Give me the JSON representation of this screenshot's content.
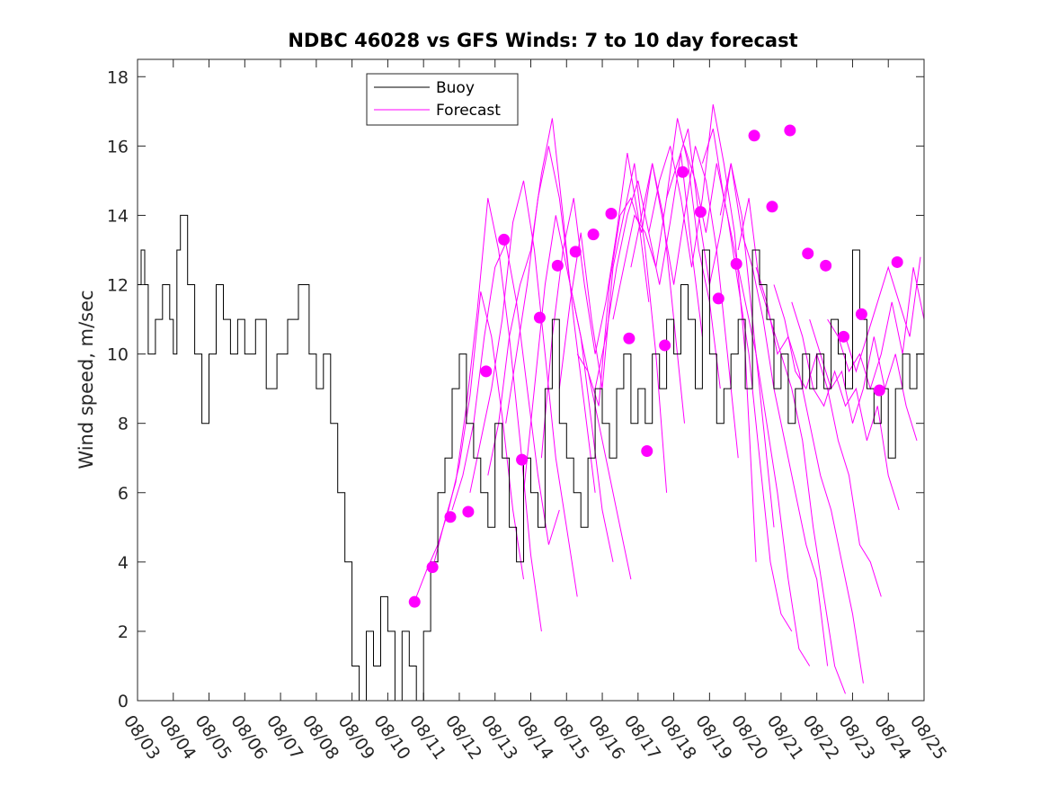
{
  "chart_data": {
    "type": "line",
    "title": "NDBC 46028 vs GFS Winds: 7 to 10 day forecast",
    "xlabel": "",
    "ylabel": "Wind speed, m/sec",
    "xlim": [
      0,
      22
    ],
    "ylim": [
      0,
      18.5
    ],
    "x_tick_labels": [
      "08/03",
      "08/04",
      "08/05",
      "08/06",
      "08/07",
      "08/08",
      "08/09",
      "08/10",
      "08/11",
      "08/12",
      "08/13",
      "08/14",
      "08/15",
      "08/16",
      "08/17",
      "08/18",
      "08/19",
      "08/20",
      "08/21",
      "08/22",
      "08/23",
      "08/24",
      "08/25"
    ],
    "y_ticks": [
      0,
      2,
      4,
      6,
      8,
      10,
      12,
      14,
      16,
      18
    ],
    "legend": {
      "placement": "top-left",
      "entries": [
        {
          "name": "Buoy",
          "color": "#000000"
        },
        {
          "name": "Forecast",
          "color": "#ff00ff"
        }
      ]
    },
    "colors": {
      "buoy": "#000000",
      "forecast": "#ff00ff"
    },
    "series": [
      {
        "name": "Buoy",
        "x": [
          0.0,
          0.1,
          0.2,
          0.3,
          0.5,
          0.7,
          0.9,
          1.0,
          1.1,
          1.2,
          1.4,
          1.6,
          1.8,
          2.0,
          2.2,
          2.4,
          2.6,
          2.8,
          3.0,
          3.3,
          3.6,
          3.9,
          4.2,
          4.5,
          4.8,
          5.0,
          5.2,
          5.4,
          5.6,
          5.8,
          6.0,
          6.2,
          6.4,
          6.6,
          6.8,
          7.0,
          7.2,
          7.4,
          7.6,
          7.8,
          8.0,
          8.2,
          8.4,
          8.6,
          8.8,
          9.0,
          9.2,
          9.4,
          9.6,
          9.8,
          10.0,
          10.2,
          10.4,
          10.6,
          10.8,
          11.0,
          11.2,
          11.4,
          11.6,
          11.8,
          12.0,
          12.2,
          12.4,
          12.6,
          12.8,
          13.0,
          13.2,
          13.4,
          13.6,
          13.8,
          14.0,
          14.2,
          14.4,
          14.6,
          14.8,
          15.0,
          15.2,
          15.4,
          15.6,
          15.8,
          16.0,
          16.2,
          16.4,
          16.6,
          16.8,
          17.0,
          17.2,
          17.4,
          17.6,
          17.8,
          18.0,
          18.2,
          18.4,
          18.6,
          18.8,
          19.0,
          19.2,
          19.4,
          19.6,
          19.8,
          20.0,
          20.2,
          20.4,
          20.6,
          20.8,
          21.0,
          21.2,
          21.4,
          21.6,
          21.8,
          22.0
        ],
        "y": [
          12,
          13,
          12,
          10,
          11,
          12,
          11,
          10,
          13,
          14,
          12,
          10,
          8,
          10,
          12,
          11,
          10,
          11,
          10,
          11,
          9,
          10,
          11,
          12,
          10,
          9,
          10,
          8,
          6,
          4,
          1,
          0,
          2,
          1,
          3,
          2,
          0,
          2,
          1,
          0,
          2,
          4,
          6,
          7,
          9,
          10,
          8,
          7,
          6,
          5,
          8,
          7,
          5,
          4,
          7,
          6,
          5,
          9,
          11,
          8,
          7,
          6,
          5,
          7,
          9,
          8,
          7,
          9,
          10,
          8,
          9,
          8,
          10,
          9,
          11,
          10,
          12,
          11,
          9,
          13,
          10,
          8,
          9,
          10,
          11,
          9,
          13,
          12,
          11,
          9,
          10,
          8,
          9,
          10,
          9,
          10,
          9,
          11,
          10,
          9,
          13,
          11,
          9,
          8,
          9,
          7,
          9,
          10,
          9,
          10,
          9
        ],
        "note": "values approximated from plot; x measured in days since 08/03"
      }
    ],
    "forecast_lines": [
      {
        "x": [
          7.8,
          8.1,
          8.4,
          8.7,
          9.0,
          9.3,
          9.6,
          9.9,
          10.2,
          10.5,
          10.8
        ],
        "y": [
          3.0,
          3.8,
          4.5,
          5.5,
          6.8,
          8.8,
          11.8,
          10.5,
          8.2,
          5.5,
          3.5
        ]
      },
      {
        "x": [
          8.3,
          8.6,
          8.9,
          9.2,
          9.5,
          9.8,
          10.1,
          10.4,
          10.7,
          11.0,
          11.3
        ],
        "y": [
          4.0,
          5.2,
          6.3,
          8.5,
          11.2,
          14.5,
          13.0,
          10.5,
          7.5,
          4.2,
          2.0
        ]
      },
      {
        "x": [
          8.8,
          9.1,
          9.4,
          9.7,
          10.0,
          10.3,
          10.6,
          10.9,
          11.2,
          11.5,
          11.8
        ],
        "y": [
          5.5,
          6.5,
          8.0,
          10.5,
          12.5,
          13.2,
          11.5,
          9.0,
          6.5,
          4.5,
          5.5
        ]
      },
      {
        "x": [
          9.3,
          9.6,
          9.9,
          10.2,
          10.5,
          10.8,
          11.1,
          11.4,
          11.7,
          12.0,
          12.3
        ],
        "y": [
          6.0,
          7.5,
          9.0,
          11.0,
          13.8,
          15.0,
          13.0,
          10.0,
          7.0,
          5.0,
          3.0
        ]
      },
      {
        "x": [
          9.8,
          10.1,
          10.4,
          10.7,
          11.0,
          11.3,
          11.6,
          11.9,
          12.2,
          12.5,
          12.8
        ],
        "y": [
          6.5,
          8.0,
          10.5,
          12.0,
          13.0,
          15.2,
          16.8,
          14.0,
          11.0,
          8.5,
          6.0
        ]
      },
      {
        "x": [
          10.3,
          10.6,
          10.9,
          11.2,
          11.5,
          11.8,
          12.1,
          12.4,
          12.7,
          13.0,
          13.3
        ],
        "y": [
          8.0,
          10.0,
          12.0,
          14.5,
          16.0,
          14.5,
          12.0,
          10.5,
          8.0,
          5.5,
          4.0
        ]
      },
      {
        "x": [
          10.8,
          11.1,
          11.4,
          11.7,
          12.0,
          12.3,
          12.6,
          12.9,
          13.2,
          13.5,
          13.8
        ],
        "y": [
          6.0,
          9.0,
          12.0,
          14.0,
          12.5,
          11.0,
          9.5,
          8.0,
          6.5,
          5.0,
          3.5
        ]
      },
      {
        "x": [
          11.3,
          11.6,
          11.9,
          12.2,
          12.5,
          12.8,
          13.1,
          13.4,
          13.7,
          14.0,
          14.3
        ],
        "y": [
          7.0,
          10.5,
          13.0,
          14.5,
          12.0,
          10.0,
          11.5,
          13.5,
          15.8,
          14.0,
          11.5
        ]
      },
      {
        "x": [
          11.8,
          12.1,
          12.4,
          12.7,
          13.0,
          13.3,
          13.6,
          13.9,
          14.2,
          14.5,
          14.8
        ],
        "y": [
          9.0,
          11.5,
          13.5,
          11.0,
          9.0,
          12.5,
          14.0,
          15.5,
          13.0,
          10.0,
          6.0
        ]
      },
      {
        "x": [
          12.3,
          12.6,
          12.9,
          13.2,
          13.5,
          13.8,
          14.1,
          14.4,
          14.7,
          15.0,
          15.3
        ],
        "y": [
          10.0,
          9.5,
          8.5,
          12.0,
          14.0,
          14.5,
          13.5,
          15.5,
          14.0,
          11.0,
          8.0
        ]
      },
      {
        "x": [
          12.8,
          13.1,
          13.4,
          13.7,
          14.0,
          14.3,
          14.6,
          14.9,
          15.2,
          15.5,
          15.8
        ],
        "y": [
          9.0,
          10.5,
          12.5,
          14.0,
          15.0,
          13.5,
          12.0,
          13.8,
          15.8,
          13.0,
          10.5
        ]
      },
      {
        "x": [
          13.3,
          13.6,
          13.9,
          14.2,
          14.5,
          14.8,
          15.1,
          15.4,
          15.7,
          16.0,
          16.3
        ],
        "y": [
          11.0,
          12.5,
          14.0,
          13.5,
          12.5,
          14.5,
          16.8,
          15.5,
          13.0,
          11.5,
          9.0
        ]
      },
      {
        "x": [
          13.8,
          14.1,
          14.4,
          14.7,
          15.0,
          15.3,
          15.6,
          15.9,
          16.2,
          16.5,
          16.8
        ],
        "y": [
          12.5,
          14.0,
          15.5,
          13.8,
          12.0,
          14.0,
          16.0,
          15.0,
          13.0,
          10.0,
          7.0
        ]
      },
      {
        "x": [
          14.3,
          14.6,
          14.9,
          15.2,
          15.5,
          15.8,
          16.1,
          16.4,
          16.7,
          17.0,
          17.3
        ],
        "y": [
          13.5,
          15.0,
          16.0,
          14.5,
          12.5,
          14.5,
          17.2,
          15.5,
          13.5,
          10.0,
          4.0
        ]
      },
      {
        "x": [
          14.8,
          15.1,
          15.4,
          15.7,
          16.0,
          16.3,
          16.6,
          16.9,
          17.2,
          17.5,
          17.8
        ],
        "y": [
          14.5,
          15.5,
          16.5,
          14.0,
          12.0,
          13.5,
          15.5,
          14.0,
          11.0,
          8.0,
          5.0
        ]
      },
      {
        "x": [
          15.3,
          15.6,
          15.9,
          16.2,
          16.5,
          16.8,
          17.1,
          17.4,
          17.7,
          18.0,
          18.3
        ],
        "y": [
          16.0,
          15.0,
          13.5,
          15.5,
          14.0,
          12.0,
          10.0,
          7.0,
          4.0,
          2.5,
          2.0
        ]
      },
      {
        "x": [
          15.8,
          16.1,
          16.4,
          16.7,
          17.0,
          17.3,
          17.6,
          17.9,
          18.2,
          18.5,
          18.8
        ],
        "y": [
          15.5,
          16.5,
          14.5,
          13.0,
          11.5,
          10.0,
          8.0,
          6.0,
          3.5,
          1.5,
          1.0
        ]
      },
      {
        "x": [
          16.3,
          16.6,
          16.9,
          17.2,
          17.5,
          17.8,
          18.1,
          18.4,
          18.7,
          19.0,
          19.3
        ],
        "y": [
          14.0,
          15.5,
          13.5,
          12.5,
          11.0,
          9.0,
          7.5,
          6.0,
          4.5,
          3.5,
          1.0
        ]
      },
      {
        "x": [
          16.8,
          17.1,
          17.4,
          17.7,
          18.0,
          18.3,
          18.6,
          18.9,
          19.2,
          19.5,
          19.8
        ],
        "y": [
          13.0,
          14.5,
          12.0,
          11.0,
          10.0,
          9.0,
          7.5,
          5.0,
          3.0,
          1.0,
          0.2
        ]
      },
      {
        "x": [
          17.3,
          17.6,
          17.9,
          18.2,
          18.5,
          18.8,
          19.1,
          19.4,
          19.7,
          20.0,
          20.3
        ],
        "y": [
          12.5,
          11.5,
          10.0,
          10.5,
          9.5,
          8.0,
          6.5,
          5.5,
          4.0,
          2.5,
          0.5
        ]
      },
      {
        "x": [
          17.8,
          18.1,
          18.4,
          18.7,
          19.0,
          19.3,
          19.6,
          19.9,
          20.2,
          20.5,
          20.8
        ],
        "y": [
          12.0,
          11.0,
          9.5,
          9.0,
          10.0,
          9.0,
          7.5,
          6.5,
          4.5,
          4.0,
          3.0
        ]
      },
      {
        "x": [
          18.3,
          18.6,
          18.9,
          19.2,
          19.5,
          19.8,
          20.1,
          20.4,
          20.7,
          21.0,
          21.3
        ],
        "y": [
          11.5,
          10.5,
          9.0,
          8.5,
          9.5,
          8.5,
          9.0,
          7.5,
          8.5,
          6.5,
          5.5
        ]
      },
      {
        "x": [
          18.8,
          19.1,
          19.4,
          19.7,
          20.0,
          20.3,
          20.6,
          20.9,
          21.2,
          21.5,
          21.8
        ],
        "y": [
          11.0,
          10.0,
          9.0,
          9.5,
          8.0,
          9.0,
          10.5,
          9.0,
          10.0,
          8.5,
          7.5
        ]
      },
      {
        "x": [
          19.3,
          19.6,
          19.9,
          20.2,
          20.5,
          20.8,
          21.1,
          21.4,
          21.7,
          22.0
        ],
        "y": [
          11.0,
          10.5,
          9.5,
          10.0,
          9.0,
          10.0,
          11.5,
          10.0,
          12.5,
          11.0
        ]
      },
      {
        "x": [
          19.8,
          20.1,
          20.4,
          20.7,
          21.0,
          21.3,
          21.6,
          21.9
        ],
        "y": [
          10.5,
          9.5,
          10.5,
          11.5,
          12.5,
          11.5,
          10.5,
          12.8
        ]
      }
    ],
    "forecast_markers": {
      "x": [
        7.75,
        8.25,
        8.75,
        9.25,
        9.75,
        10.25,
        10.75,
        11.25,
        11.75,
        12.25,
        12.75,
        13.25,
        13.75,
        14.25,
        14.75,
        15.25,
        15.75,
        16.25,
        16.75,
        17.25,
        17.75,
        18.25,
        18.75,
        19.25,
        19.75,
        20.25,
        20.75,
        21.25
      ],
      "y": [
        2.85,
        3.85,
        5.3,
        5.45,
        9.5,
        13.3,
        6.95,
        11.05,
        12.55,
        12.95,
        13.45,
        14.05,
        10.45,
        7.2,
        10.25,
        15.25,
        14.1,
        11.6,
        12.6,
        16.3,
        14.25,
        16.45,
        12.9,
        12.55,
        10.5,
        11.15,
        8.95,
        12.65
      ]
    }
  }
}
